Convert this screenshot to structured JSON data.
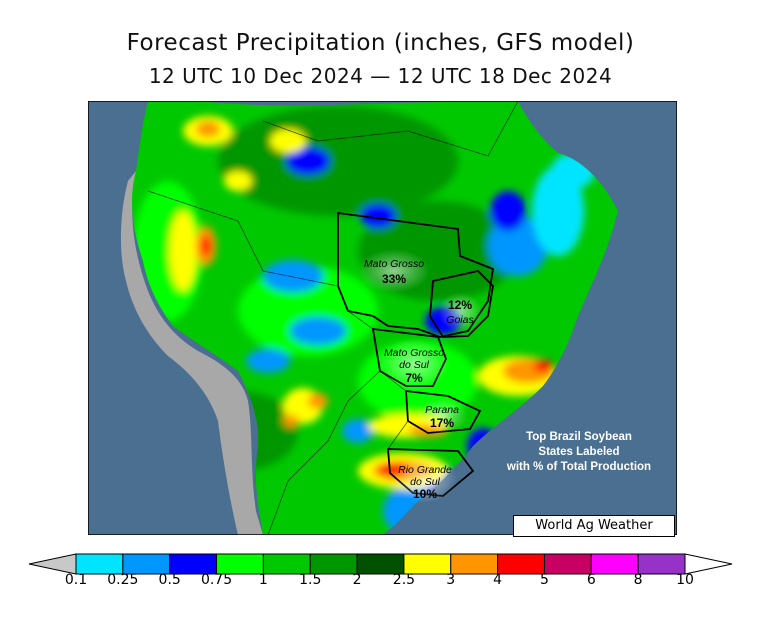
{
  "header": {
    "title": "Forecast Precipitation (inches, GFS model)",
    "subtitle": "12 UTC 10 Dec 2024 — 12 UTC 18 Dec 2024"
  },
  "map": {
    "region": "South America (Brazil)",
    "ocean_color": "#4a6f90",
    "land_outside_color": "#a8a8a8",
    "states": [
      {
        "name_line1": "Mato Grosso",
        "name_line2": "",
        "percent": "33%"
      },
      {
        "name_line1": "Goias",
        "name_line2": "",
        "percent": "12%"
      },
      {
        "name_line1": "Mato Grosso",
        "name_line2": "do Sul",
        "percent": "7%"
      },
      {
        "name_line1": "Parana",
        "name_line2": "",
        "percent": "17%"
      },
      {
        "name_line1": "Rio Grande",
        "name_line2": "do Sul",
        "percent": "10%"
      }
    ],
    "note": {
      "line1": "Top Brazil Soybean",
      "line2": "States Labeled",
      "line3": "with % of Total Production"
    },
    "credit": "World Ag Weather"
  },
  "legend": {
    "labels": [
      "0.1",
      "0.25",
      "0.5",
      "0.75",
      "1",
      "1.5",
      "2",
      "2.5",
      "3",
      "4",
      "5",
      "6",
      "8",
      "10"
    ],
    "colors": [
      "#c8c8c8",
      "#00e5ff",
      "#0096ff",
      "#0000ff",
      "#00ff00",
      "#00c800",
      "#009600",
      "#005000",
      "#ffff00",
      "#ff9600",
      "#ff0000",
      "#c80064",
      "#ff00ff",
      "#9632c8",
      "#ffffff"
    ]
  }
}
